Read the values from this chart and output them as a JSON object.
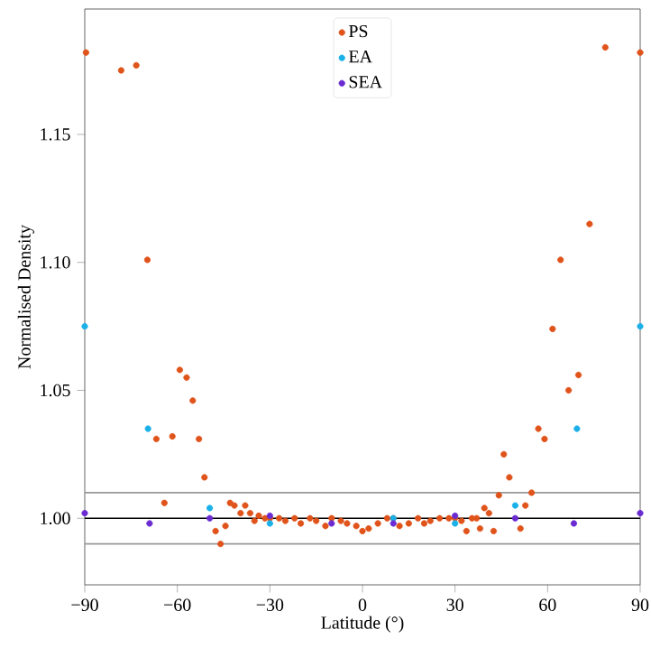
{
  "chart_data": {
    "type": "scatter",
    "xlabel": "Latitude (°)",
    "ylabel": "Normalised Density",
    "xlim": [
      -90,
      90
    ],
    "ylim": [
      0.974,
      1.199
    ],
    "xticks": [
      {
        "value": -90,
        "label": "−90"
      },
      {
        "value": -60,
        "label": "−60"
      },
      {
        "value": -30,
        "label": "−30"
      },
      0,
      30,
      60,
      90
    ],
    "yticks": [
      {
        "value": 1.0,
        "label": "1.00"
      },
      1.05,
      {
        "value": 1.1,
        "label": "1.10"
      },
      1.15
    ],
    "legend": "top",
    "marker": "circle",
    "grid": false,
    "ref_lines": [
      {
        "axis": "y",
        "value": 1.0,
        "color": "#000000"
      },
      {
        "axis": "y",
        "value": 1.01,
        "color": "#999999"
      },
      {
        "axis": "y",
        "value": 0.99,
        "color": "#999999"
      }
    ],
    "series": [
      {
        "name": "PS",
        "color": "#e0531a",
        "x": [
          -89.6,
          -78.2,
          -73.3,
          -69.7,
          -66.8,
          -64.2,
          -61.6,
          -59.2,
          -57.0,
          -55.0,
          -53.0,
          -51.2,
          -47.6,
          -46.0,
          -44.4,
          -42.9,
          -41.5,
          -39.5,
          -38.0,
          -36.4,
          -35.0,
          -33.6,
          -31.6,
          -30,
          -27,
          -25,
          -22,
          -20,
          -17,
          -15,
          -12,
          -10,
          -7,
          -5,
          -2,
          0,
          2,
          5,
          8,
          10,
          12,
          15,
          18,
          20,
          22,
          25,
          28,
          30,
          32.1,
          33.7,
          35.5,
          37.0,
          38.1,
          39.5,
          41.0,
          42.5,
          44.2,
          45.8,
          47.6,
          51.2,
          52.8,
          54.8,
          57.0,
          59.0,
          61.6,
          64.2,
          66.8,
          70.0,
          73.6,
          78.7,
          90
        ],
        "values": [
          1.182,
          1.175,
          1.177,
          1.101,
          1.031,
          1.006,
          1.032,
          1.058,
          1.055,
          1.046,
          1.031,
          1.016,
          0.995,
          0.99,
          0.997,
          1.006,
          1.005,
          1.002,
          1.005,
          1.002,
          0.999,
          1.001,
          1.0,
          1.0,
          1.0,
          0.999,
          1.0,
          0.998,
          1.0,
          0.999,
          0.997,
          1.0,
          0.999,
          0.998,
          0.997,
          0.995,
          0.996,
          0.998,
          1.0,
          1.0,
          0.997,
          0.998,
          1.0,
          0.998,
          0.999,
          1.0,
          1.0,
          1.0,
          0.999,
          0.995,
          1.0,
          1.0,
          0.996,
          1.004,
          1.002,
          0.995,
          1.009,
          1.025,
          1.016,
          0.996,
          1.005,
          1.01,
          1.035,
          1.031,
          1.074,
          1.101,
          1.05,
          1.056,
          1.115,
          1.184,
          1.182
        ]
      },
      {
        "name": "EA",
        "color": "#1ab0e8",
        "x": [
          -90,
          -69.5,
          -49.5,
          -30,
          10,
          30,
          49.5,
          69.5,
          90
        ],
        "values": [
          1.075,
          1.035,
          1.004,
          0.998,
          1.0,
          0.998,
          1.005,
          1.035,
          1.075
        ]
      },
      {
        "name": "SEA",
        "color": "#6a2bd1",
        "x": [
          -90,
          -69,
          -49.5,
          -30,
          -10,
          10,
          30,
          49.5,
          68.5,
          90
        ],
        "values": [
          1.002,
          0.998,
          1.0,
          1.001,
          0.998,
          0.998,
          1.001,
          1.0,
          0.998,
          1.002
        ]
      }
    ]
  }
}
